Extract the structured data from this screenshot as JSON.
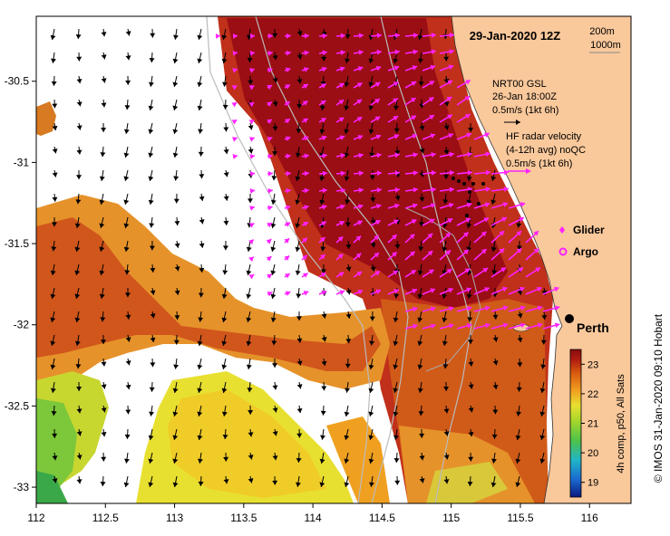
{
  "map": {
    "title": "29-Jan-2020 12Z",
    "x_ticks": [
      "112",
      "112.5",
      "113",
      "113.5",
      "114",
      "114.5",
      "115",
      "115.5",
      "116"
    ],
    "y_ticks": [
      "-30.5",
      "-31",
      "-31.5",
      "-32",
      "-32.5",
      "-33"
    ],
    "extent": {
      "lon": [
        112,
        116.3
      ],
      "lat": [
        -33.1,
        -30.1
      ]
    }
  },
  "contours": {
    "label_a": "200m",
    "label_b": "1000m"
  },
  "annotations": {
    "model_line1": "NRT00 GSL",
    "model_line2": "26-Jan 18:00Z",
    "model_line3": "0.5m/s (1kt 6h)",
    "radar_line1": "HF radar velocity",
    "radar_line2": "(4-12h avg) noQC",
    "radar_line3": "0.5m/s (1kt 6h)"
  },
  "legend": {
    "glider": "Glider",
    "argo": "Argo"
  },
  "city": {
    "name": "Perth",
    "lon": 115.86,
    "lat": -31.95
  },
  "colorbar": {
    "ticks": [
      "23",
      "22",
      "21",
      "20",
      "19"
    ],
    "label": "4h comp, p50, All Sats",
    "range": [
      18.5,
      23.5
    ]
  },
  "credit": "© IMOS 31-Jan-2020 09:10 Hobart",
  "colors": {
    "land": "#f9c89b",
    "radar_arrow": "#ff22ff",
    "model_arrow": "#000000",
    "contour": "#bbbbbb"
  }
}
